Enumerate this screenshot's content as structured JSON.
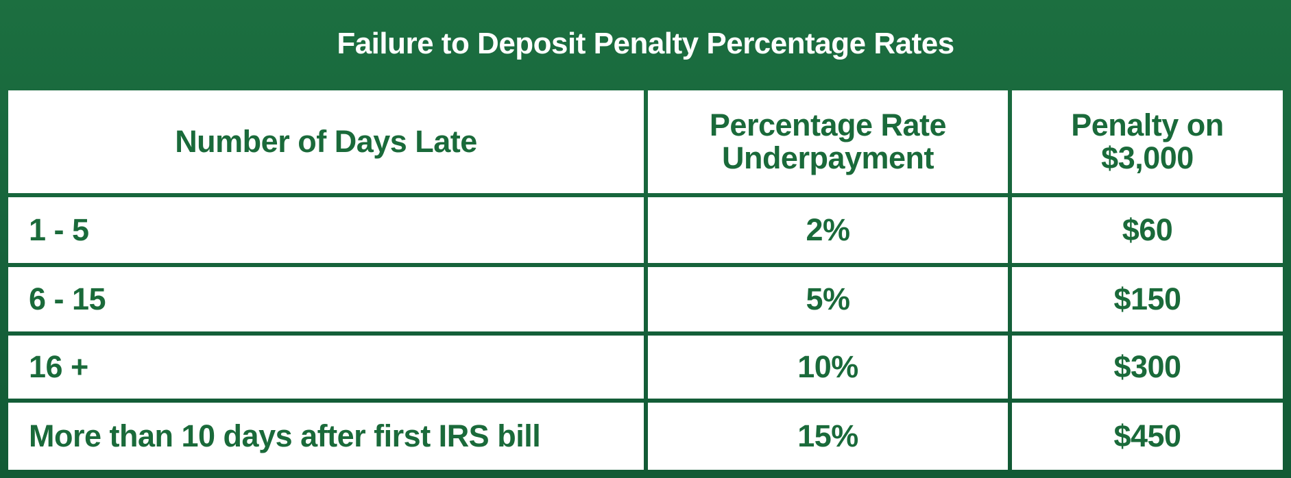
{
  "title": "Failure to Deposit Penalty Percentage Rates",
  "colors": {
    "frame_green": "#17663a",
    "text_green": "#1a6a3a",
    "cell_background": "#ffffff",
    "title_text": "#ffffff"
  },
  "table": {
    "headers": {
      "days_late": "Number of Days Late",
      "rate_line1": "Percentage Rate",
      "rate_line2": "Underpayment",
      "penalty_line1": "Penalty on",
      "penalty_line2": "$3,000"
    },
    "rows": [
      {
        "days": "1 - 5",
        "rate": "2%",
        "penalty": "$60"
      },
      {
        "days": "6 - 15",
        "rate": "5%",
        "penalty": "$150"
      },
      {
        "days": "16 +",
        "rate": "10%",
        "penalty": "$300"
      },
      {
        "days": "More than 10 days after first IRS bill",
        "rate": "15%",
        "penalty": "$450"
      }
    ]
  }
}
